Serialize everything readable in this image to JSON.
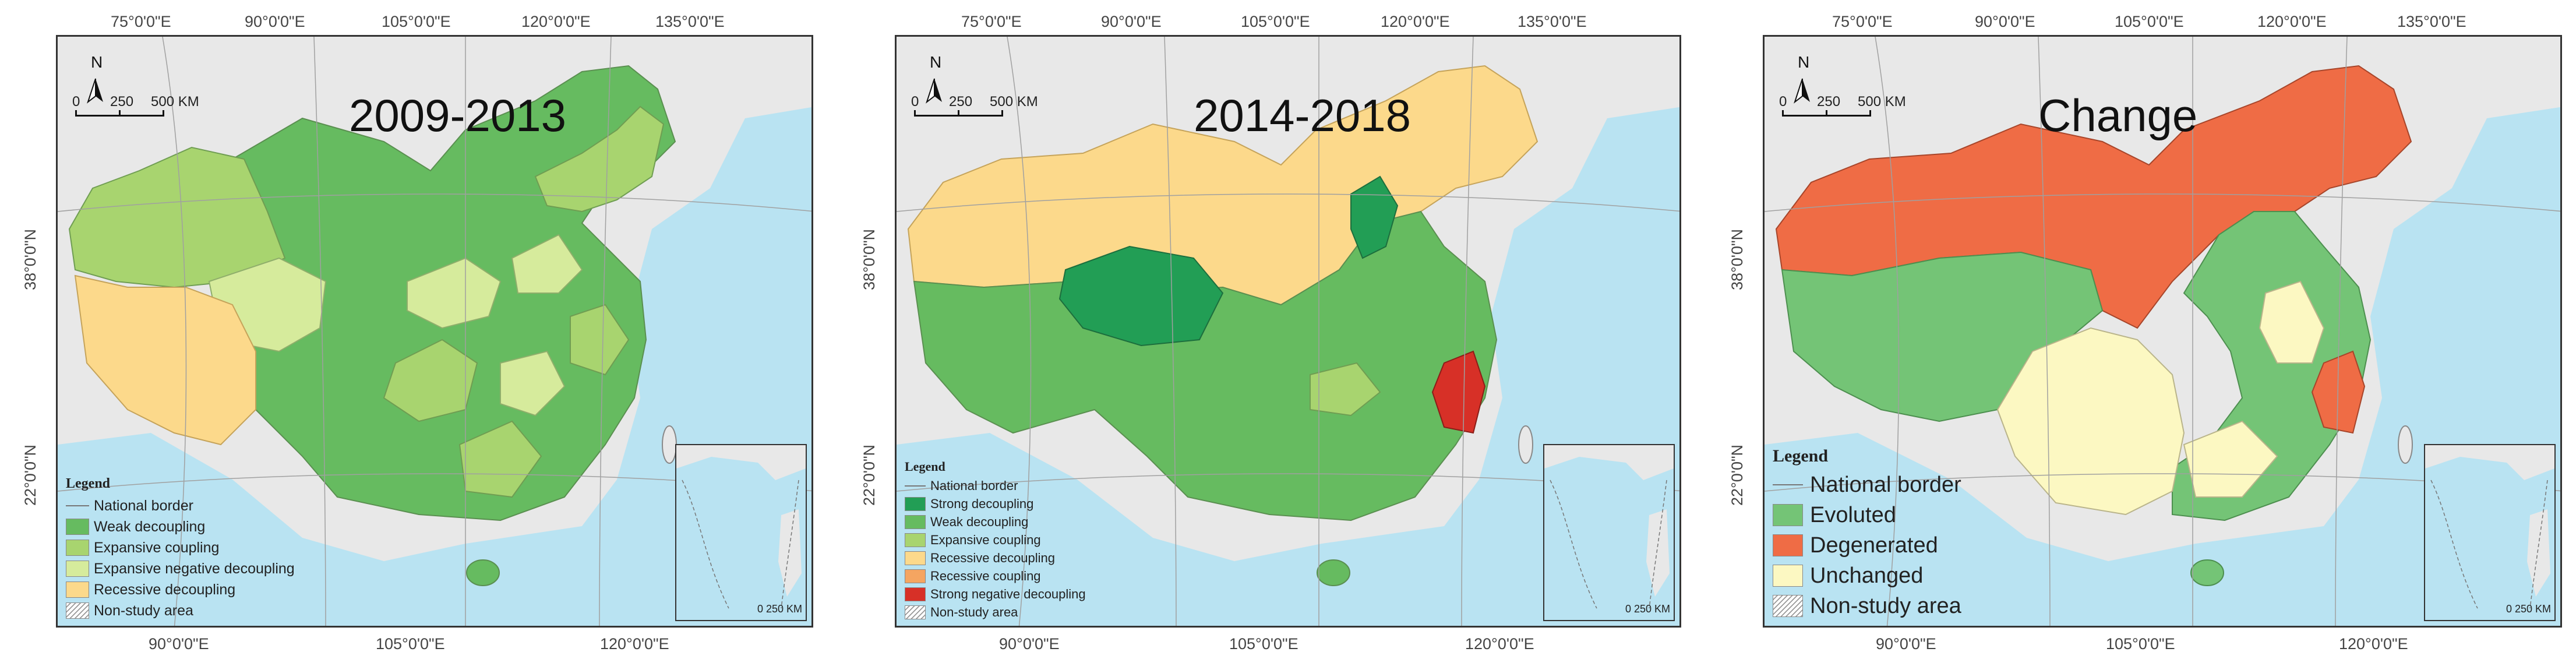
{
  "colors": {
    "sea": "#b9e3f2",
    "land_other": "#e8e8e8",
    "strong_decoupling": "#229e55",
    "weak_decoupling": "#66bb60",
    "expansive_coupling": "#a8d46f",
    "expansive_negative_decoupling": "#d6eb9c",
    "recessive_decoupling": "#fcd98b",
    "recessive_coupling": "#f5a561",
    "strong_negative_decoupling": "#d73027",
    "evoluted": "#74c476",
    "degenerated": "#ef6c45",
    "unchanged": "#fcf8c2"
  },
  "common": {
    "top_lon": [
      "75°0'0\"E",
      "90°0'0\"E",
      "105°0'0\"E",
      "120°0'0\"E",
      "135°0'0\"E"
    ],
    "bottom_lon": [
      "90°0'0\"E",
      "105°0'0\"E",
      "120°0'0\"E"
    ],
    "lat_38": "38°0'0\"N",
    "lat_22": "22°0'0\"N",
    "north": "N",
    "scale_labels": [
      "0",
      "250",
      "500 KM"
    ],
    "inset_scale": "0 250 KM"
  },
  "panels": [
    {
      "title": "2009-2013",
      "legend_title": "Legend",
      "legend_items": [
        {
          "label": "National border",
          "kind": "line"
        },
        {
          "label": "Weak decoupling",
          "kind": "fill",
          "color": "#66bb60"
        },
        {
          "label": "Expansive coupling",
          "kind": "fill",
          "color": "#a8d46f"
        },
        {
          "label": "Expansive negative decoupling",
          "kind": "fill",
          "color": "#d6eb9c"
        },
        {
          "label": "Recessive decoupling",
          "kind": "fill",
          "color": "#fcd98b"
        },
        {
          "label": "Non-study area",
          "kind": "hatch"
        }
      ]
    },
    {
      "title": "2014-2018",
      "legend_title": "Legend",
      "legend_items": [
        {
          "label": "National border",
          "kind": "line"
        },
        {
          "label": "Strong decoupling",
          "kind": "fill",
          "color": "#229e55"
        },
        {
          "label": "Weak decoupling",
          "kind": "fill",
          "color": "#66bb60"
        },
        {
          "label": "Expansive coupling",
          "kind": "fill",
          "color": "#a8d46f"
        },
        {
          "label": "Recessive decoupling",
          "kind": "fill",
          "color": "#fcd98b"
        },
        {
          "label": "Recessive coupling",
          "kind": "fill",
          "color": "#f5a561"
        },
        {
          "label": "Strong negative decoupling",
          "kind": "fill",
          "color": "#d73027"
        },
        {
          "label": "Non-study area",
          "kind": "hatch"
        }
      ]
    },
    {
      "title": "Change",
      "legend_title": "Legend",
      "legend_items": [
        {
          "label": "National border",
          "kind": "line"
        },
        {
          "label": "Evoluted",
          "kind": "fill",
          "color": "#74c476"
        },
        {
          "label": "Degenerated",
          "kind": "fill",
          "color": "#ef6c45"
        },
        {
          "label": "Unchanged",
          "kind": "fill",
          "color": "#fcf8c2"
        },
        {
          "label": "Non-study area",
          "kind": "hatch"
        }
      ]
    }
  ]
}
